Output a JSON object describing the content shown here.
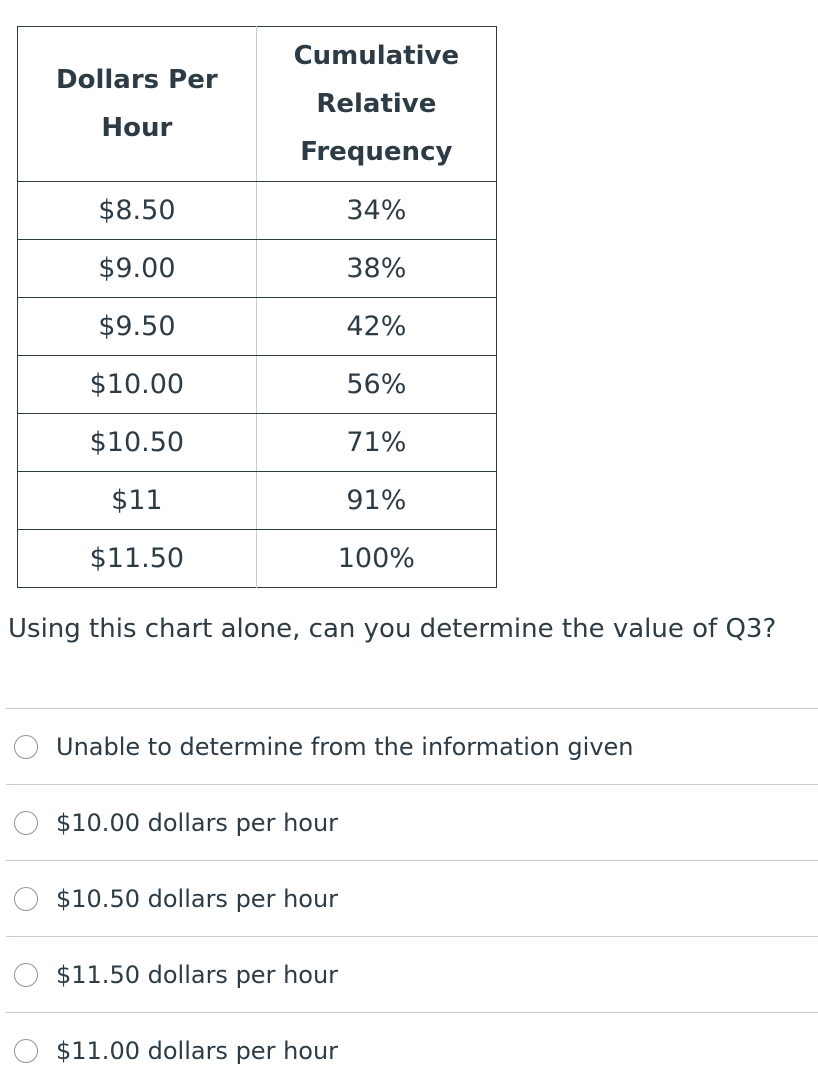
{
  "table": {
    "headers": [
      "Dollars Per Hour",
      "Cumulative Relative Frequency"
    ],
    "header_lines": [
      [
        "Dollars Per",
        "Hour"
      ],
      [
        "Cumulative",
        "Relative",
        "Frequency"
      ]
    ],
    "rows": [
      [
        "$8.50",
        "34%"
      ],
      [
        "$9.00",
        "38%"
      ],
      [
        "$9.50",
        "42%"
      ],
      [
        "$10.00",
        "56%"
      ],
      [
        "$10.50",
        "71%"
      ],
      [
        "$11",
        "91%"
      ],
      [
        "$11.50",
        "100%"
      ]
    ]
  },
  "question": {
    "text": "Using this chart alone, can you determine the value of Q3?"
  },
  "answers": [
    {
      "label": "Unable to determine from the information given",
      "selected": false
    },
    {
      "label": "$10.00 dollars per hour",
      "selected": false
    },
    {
      "label": "$10.50 dollars per hour",
      "selected": false
    },
    {
      "label": "$11.50 dollars per hour",
      "selected": false
    },
    {
      "label": "$11.00 dollars per hour",
      "selected": false
    }
  ],
  "colors": {
    "text": "#2d3b45",
    "divider": "#c7cdd1",
    "radio_border": "#8b969e"
  }
}
